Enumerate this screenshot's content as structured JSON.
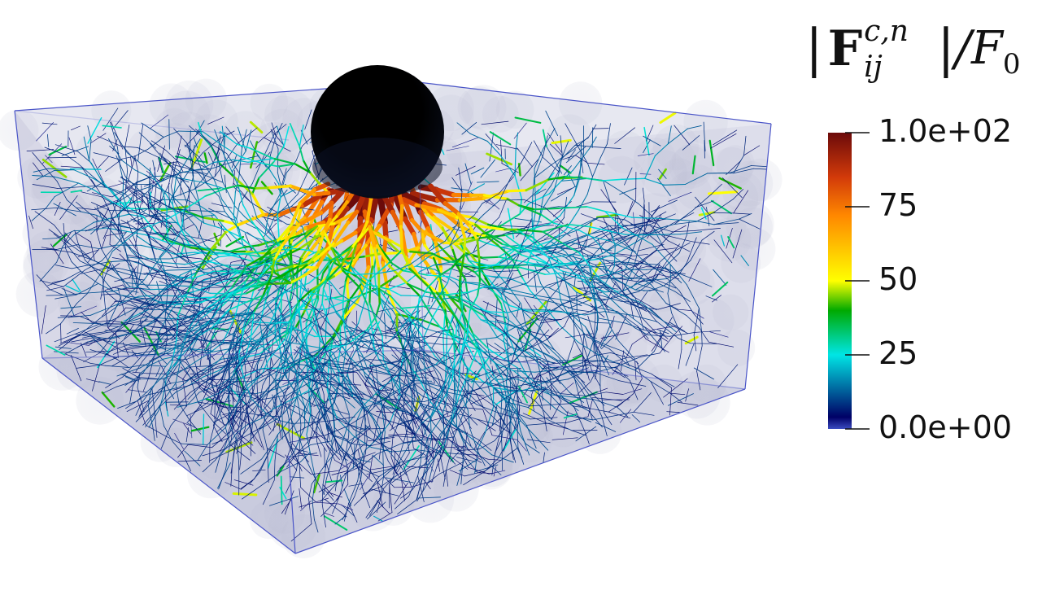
{
  "legend": {
    "title": {
      "bar_open": "|",
      "symbol": "F",
      "superscript": "c,n",
      "subscript": "ij",
      "bar_close": "|",
      "slash": "/",
      "normalizer": "F",
      "normalizer_subscript": "0"
    },
    "ticks": [
      {
        "label": "1.0e+02",
        "value": 100
      },
      {
        "label": "75",
        "value": 75
      },
      {
        "label": "50",
        "value": 50
      },
      {
        "label": "25",
        "value": 25
      },
      {
        "label": "0.0e+00",
        "value": 0
      }
    ],
    "range": [
      0,
      100
    ],
    "colormap_stops": [
      "#3b4cc0",
      "#000066",
      "#00e5e5",
      "#00aa00",
      "#ffff00",
      "#ff8800",
      "#d23a0a",
      "#6b0a0a"
    ]
  },
  "scene": {
    "box_edge_color": "#4a55c8",
    "box_fill_color": "#c9cbdf",
    "indenter_color": "#050505"
  }
}
